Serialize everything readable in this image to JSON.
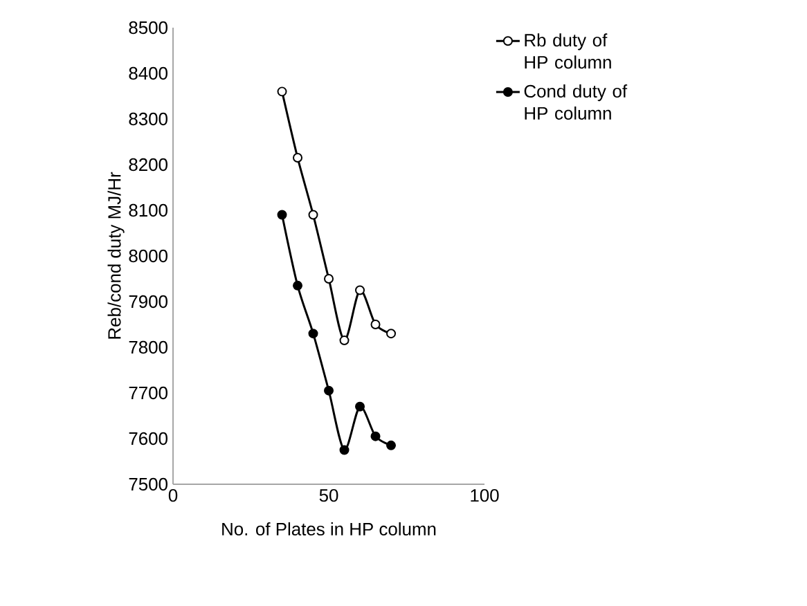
{
  "chart_data": {
    "type": "line",
    "xlabel": "No. of Plates in HP column",
    "ylabel": "Reb/cond duty MJ/Hr",
    "xlim": [
      0,
      100
    ],
    "xticks": [
      0,
      50,
      100
    ],
    "ylim": [
      7500,
      8500
    ],
    "yticks": [
      7500,
      7600,
      7700,
      7800,
      7900,
      8000,
      8100,
      8200,
      8300,
      8400,
      8500
    ],
    "grid": false,
    "legend": "right",
    "marker": "circle",
    "series": [
      {
        "name": "Rb duty of HP column",
        "color": "#000000",
        "colors": [
          "#ffffff",
          "#ffffff",
          "#ffffff",
          "#ffffff",
          "#ffffff",
          "#ffffff",
          "#ffffff",
          "#ffffff"
        ],
        "x": [
          35,
          40,
          45,
          50,
          55,
          60,
          65,
          70
        ],
        "values": [
          8360,
          8215,
          8090,
          7950,
          7815,
          7925,
          7850,
          7830
        ]
      },
      {
        "name": "Cond duty of HP column",
        "color": "#000000",
        "colors": [
          "#000000",
          "#000000",
          "#000000",
          "#000000",
          "#000000",
          "#000000",
          "#000000",
          "#000000"
        ],
        "x": [
          35,
          40,
          45,
          50,
          55,
          60,
          65,
          70
        ],
        "values": [
          8090,
          7935,
          7830,
          7705,
          7575,
          7670,
          7605,
          7585
        ]
      }
    ]
  }
}
